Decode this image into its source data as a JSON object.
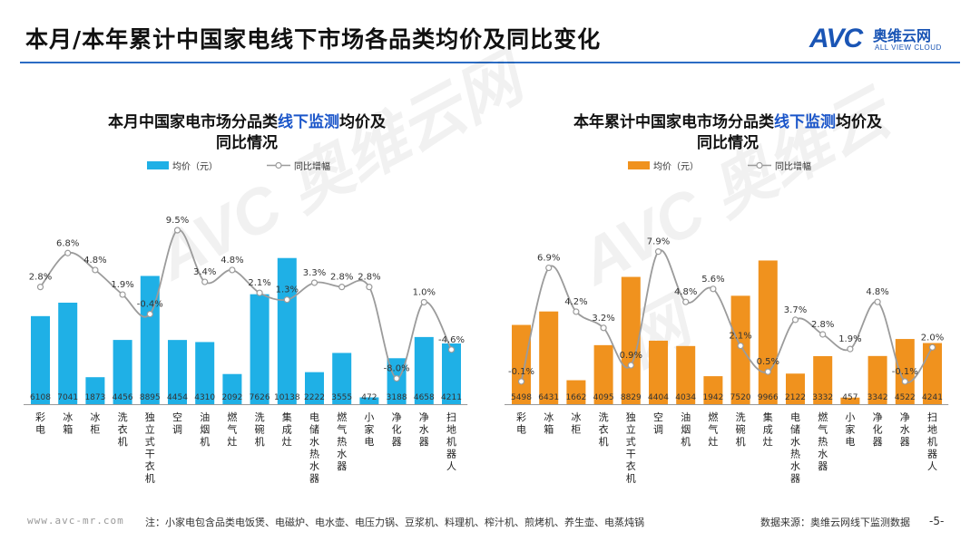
{
  "header": {
    "title": "本月/本年累计中国家电线下市场各品类均价及同比变化",
    "logo_mark": "AVC",
    "logo_cn": "奥维云网",
    "logo_en": "ALL VIEW CLOUD"
  },
  "watermark": "AVC 奥维云网",
  "colors": {
    "accent_blue": "#1fb0e6",
    "accent_orange": "#f0921e",
    "highlight": "#1a55c9",
    "line": "#9b9b9b",
    "rule": "#2b6cc4"
  },
  "chart_data": [
    {
      "type": "bar",
      "title_prefix": "本月中国家电市场分品类",
      "title_highlight": "线下监测",
      "title_suffix": "均价及",
      "title_line2": "同比情况",
      "legend_bar": "均价（元）",
      "legend_line": "同比增幅",
      "categories": [
        "彩电",
        "冰箱",
        "冰柜",
        "洗衣机",
        "独立式干衣机",
        "空调",
        "油烟机",
        "燃气灶",
        "洗碗机",
        "集成灶",
        "电储水热水器",
        "燃气热水器",
        "小家电",
        "净化器",
        "净水器",
        "扫地机器人"
      ],
      "series": [
        {
          "name": "均价（元）",
          "values": [
            6108,
            7041,
            1873,
            4456,
            8895,
            4454,
            4310,
            2092,
            7626,
            10138,
            2222,
            3555,
            472,
            3188,
            4658,
            4211
          ]
        },
        {
          "name": "同比增幅",
          "values": [
            2.8,
            6.8,
            4.8,
            1.9,
            -0.4,
            9.5,
            3.4,
            4.8,
            2.1,
            1.3,
            3.3,
            2.8,
            2.8,
            -8.0,
            1.0,
            -4.6
          ]
        }
      ],
      "value_labels": [
        "6108",
        "7041",
        "1873",
        "4456",
        "8895",
        "4454",
        "4310",
        "2092",
        "7626",
        "10138",
        "2222",
        "3555",
        "472",
        "3188",
        "4658",
        "4211"
      ],
      "pct_labels": [
        "2.8%",
        "6.8%",
        "4.8%",
        "1.9%",
        "-0.4%",
        "9.5%",
        "3.4%",
        "4.8%",
        "2.1%",
        "1.3%",
        "3.3%",
        "2.8%",
        "2.8%",
        "-8.0%",
        "1.0%",
        "-4.6%"
      ],
      "ylim_bar": [
        0,
        11000
      ],
      "ylim_line": [
        -12,
        11
      ]
    },
    {
      "type": "bar",
      "title_prefix": "本年累计中国家电市场分品类",
      "title_highlight": "线下监测",
      "title_suffix": "均价及",
      "title_line2": "同比情况",
      "legend_bar": "均价（元）",
      "legend_line": "同比增幅",
      "categories": [
        "彩电",
        "冰箱",
        "冰柜",
        "洗衣机",
        "独立式干衣机",
        "空调",
        "油烟机",
        "燃气灶",
        "洗碗机",
        "集成灶",
        "电储水热水器",
        "燃气热水器",
        "小家电",
        "净化器",
        "净水器",
        "扫地机器人"
      ],
      "series": [
        {
          "name": "均价（元）",
          "values": [
            5498,
            6431,
            1662,
            4095,
            8829,
            4404,
            4034,
            1942,
            7520,
            9966,
            2122,
            3332,
            457,
            3342,
            4522,
            4241
          ]
        },
        {
          "name": "同比增幅",
          "values": [
            -0.1,
            6.9,
            4.2,
            3.2,
            0.9,
            7.9,
            4.8,
            5.6,
            2.1,
            0.5,
            3.7,
            2.8,
            1.9,
            4.8,
            -0.1,
            2.0
          ]
        }
      ],
      "value_labels": [
        "5498",
        "6431",
        "1662",
        "4095",
        "8829",
        "4404",
        "4034",
        "1942",
        "7520",
        "9966",
        "2122",
        "3332",
        "457",
        "3342",
        "4522",
        "4241"
      ],
      "pct_labels": [
        "-0.1%",
        "6.9%",
        "4.2%",
        "3.2%",
        "0.9%",
        "7.9%",
        "4.8%",
        "5.6%",
        "2.1%",
        "0.5%",
        "3.7%",
        "2.8%",
        "1.9%",
        "4.8%",
        "-0.1%",
        "2.0%"
      ],
      "ylim_bar": [
        0,
        11000
      ],
      "ylim_line": [
        -2,
        10
      ]
    }
  ],
  "footer": {
    "site": "www.avc-mr.com",
    "note": "注：小家电包含品类电饭煲、电磁炉、电水壶、电压力锅、豆浆机、料理机、榨汁机、煎烤机、养生壶、电蒸炖锅",
    "source": "数据来源：奥维云网线下监测数据",
    "page": "-5-"
  }
}
